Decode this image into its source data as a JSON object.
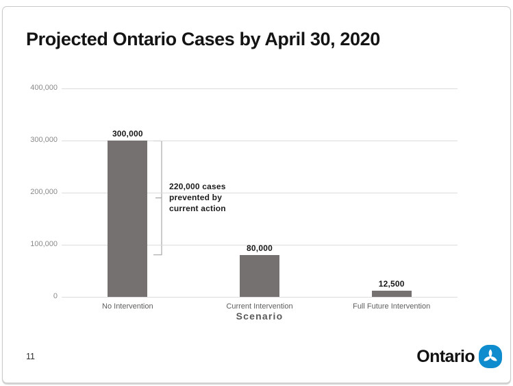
{
  "slide": {
    "title": "Projected Ontario Cases by April 30, 2020",
    "page_number": "11",
    "logo": {
      "wordmark": "Ontario",
      "icon": "ontario-trillium-icon"
    }
  },
  "colors": {
    "bar": "#767171",
    "gridline": "#dcdcdc",
    "bracket": "#a6a6a6",
    "ontario_blue": "#0e8ccd"
  },
  "chart_data": {
    "type": "bar",
    "title": "Projected Ontario Cases by April 30, 2020",
    "categories": [
      "No Intervention",
      "Current Intervention",
      "Full Future Intervention"
    ],
    "values": [
      300000,
      80000,
      12500
    ],
    "value_labels": [
      "300,000",
      "80,000",
      "12,500"
    ],
    "xlabel": "Scenario",
    "ylabel": "",
    "ylim": [
      0,
      400000
    ],
    "ytick_step": 100000,
    "ytick_labels": [
      "400,000",
      "300,000",
      "200,000",
      "100,000",
      "0"
    ],
    "grid": true,
    "legend": false,
    "annotation": {
      "text_lines": [
        "220,000 cases",
        "prevented by",
        "current action"
      ],
      "from_value": 300000,
      "to_value": 80000
    }
  }
}
